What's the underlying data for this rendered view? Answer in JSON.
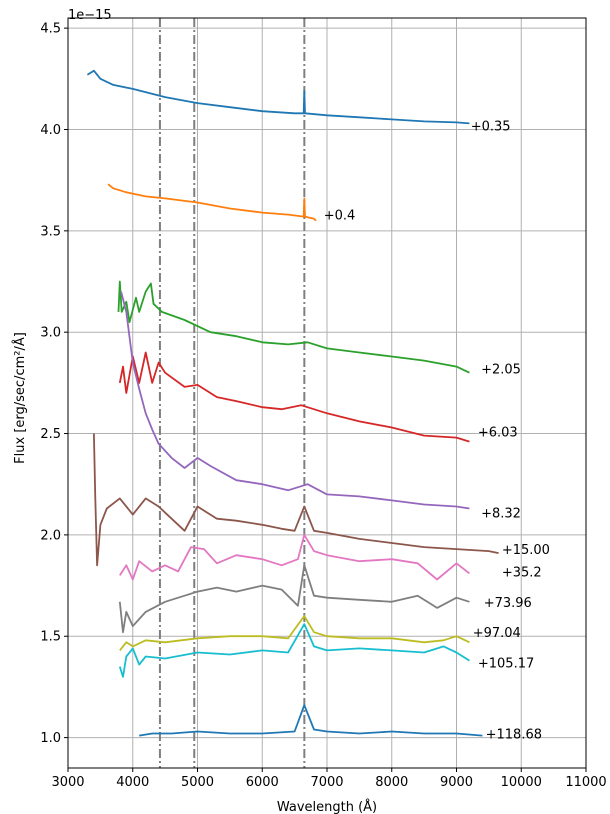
{
  "chart_data": {
    "type": "line",
    "title": "",
    "xlabel": "Wavelength (Å)",
    "ylabel": "Flux [erg/sec/cm²/Å]",
    "y_scale_label": "1e−15",
    "xlim": [
      3000,
      11000
    ],
    "ylim": [
      0.85,
      4.55
    ],
    "x_ticks": [
      3000,
      4000,
      5000,
      6000,
      7000,
      8000,
      9000,
      10000,
      11000
    ],
    "y_ticks": [
      1.0,
      1.5,
      2.0,
      2.5,
      3.0,
      3.5,
      4.0,
      4.5
    ],
    "x_tick_labels": [
      "3000",
      "4000",
      "5000",
      "6000",
      "7000",
      "8000",
      "9000",
      "10000",
      "11000"
    ],
    "y_tick_labels": [
      "1.0",
      "1.5",
      "2.0",
      "2.5",
      "3.0",
      "3.5",
      "4.0",
      "4.5"
    ],
    "grid": true,
    "vlines": [
      4420,
      4950,
      6650
    ],
    "vline_color": "#7f7f7f",
    "series": [
      {
        "name": "+0.35",
        "color": "#1f77b4",
        "points": [
          [
            3300,
            4.27
          ],
          [
            3400,
            4.29
          ],
          [
            3500,
            4.25
          ],
          [
            3700,
            4.22
          ],
          [
            4000,
            4.2
          ],
          [
            4500,
            4.16
          ],
          [
            5000,
            4.13
          ],
          [
            5500,
            4.11
          ],
          [
            6000,
            4.09
          ],
          [
            6500,
            4.08
          ],
          [
            6640,
            4.08
          ],
          [
            6650,
            4.19
          ],
          [
            6660,
            4.08
          ],
          [
            7000,
            4.07
          ],
          [
            7500,
            4.06
          ],
          [
            8000,
            4.05
          ],
          [
            8500,
            4.04
          ],
          [
            9000,
            4.035
          ],
          [
            9200,
            4.03
          ]
        ]
      },
      {
        "name": "+0.4",
        "color": "#ff7f0e",
        "points": [
          [
            3620,
            3.73
          ],
          [
            3700,
            3.71
          ],
          [
            3900,
            3.69
          ],
          [
            4200,
            3.67
          ],
          [
            4500,
            3.66
          ],
          [
            5000,
            3.64
          ],
          [
            5500,
            3.61
          ],
          [
            6000,
            3.59
          ],
          [
            6400,
            3.58
          ],
          [
            6640,
            3.57
          ],
          [
            6650,
            3.66
          ],
          [
            6660,
            3.57
          ],
          [
            6800,
            3.56
          ],
          [
            6830,
            3.55
          ]
        ]
      },
      {
        "name": "+2.05",
        "color": "#2ca02c",
        "points": [
          [
            3780,
            3.1
          ],
          [
            3800,
            3.25
          ],
          [
            3830,
            3.1
          ],
          [
            3900,
            3.15
          ],
          [
            3950,
            3.05
          ],
          [
            4050,
            3.17
          ],
          [
            4100,
            3.1
          ],
          [
            4200,
            3.2
          ],
          [
            4280,
            3.24
          ],
          [
            4320,
            3.14
          ],
          [
            4450,
            3.1
          ],
          [
            4800,
            3.06
          ],
          [
            5200,
            3.0
          ],
          [
            5600,
            2.98
          ],
          [
            6000,
            2.95
          ],
          [
            6400,
            2.94
          ],
          [
            6700,
            2.95
          ],
          [
            7000,
            2.92
          ],
          [
            7500,
            2.9
          ],
          [
            8000,
            2.88
          ],
          [
            8500,
            2.86
          ],
          [
            9000,
            2.83
          ],
          [
            9200,
            2.8
          ]
        ]
      },
      {
        "name": "+6.03",
        "color": "#d62728",
        "points": [
          [
            3800,
            2.75
          ],
          [
            3850,
            2.83
          ],
          [
            3900,
            2.7
          ],
          [
            4000,
            2.88
          ],
          [
            4100,
            2.75
          ],
          [
            4200,
            2.9
          ],
          [
            4300,
            2.75
          ],
          [
            4400,
            2.85
          ],
          [
            4500,
            2.8
          ],
          [
            4800,
            2.73
          ],
          [
            5000,
            2.74
          ],
          [
            5300,
            2.68
          ],
          [
            5600,
            2.66
          ],
          [
            6000,
            2.63
          ],
          [
            6300,
            2.62
          ],
          [
            6600,
            2.64
          ],
          [
            7000,
            2.6
          ],
          [
            7500,
            2.56
          ],
          [
            8000,
            2.53
          ],
          [
            8500,
            2.49
          ],
          [
            9000,
            2.48
          ],
          [
            9200,
            2.46
          ]
        ]
      },
      {
        "name": "+8.32",
        "color": "#9467bd",
        "points": [
          [
            3820,
            3.2
          ],
          [
            3900,
            3.1
          ],
          [
            4000,
            2.85
          ],
          [
            4100,
            2.72
          ],
          [
            4200,
            2.6
          ],
          [
            4300,
            2.52
          ],
          [
            4400,
            2.45
          ],
          [
            4600,
            2.38
          ],
          [
            4800,
            2.33
          ],
          [
            5000,
            2.38
          ],
          [
            5200,
            2.34
          ],
          [
            5600,
            2.27
          ],
          [
            6000,
            2.25
          ],
          [
            6400,
            2.22
          ],
          [
            6700,
            2.25
          ],
          [
            7000,
            2.2
          ],
          [
            7500,
            2.19
          ],
          [
            8000,
            2.17
          ],
          [
            8500,
            2.15
          ],
          [
            9000,
            2.14
          ],
          [
            9200,
            2.13
          ]
        ]
      },
      {
        "name": "+15.00",
        "color": "#8c564b",
        "points": [
          [
            3400,
            2.5
          ],
          [
            3420,
            2.2
          ],
          [
            3450,
            1.85
          ],
          [
            3500,
            2.05
          ],
          [
            3600,
            2.13
          ],
          [
            3800,
            2.18
          ],
          [
            4000,
            2.1
          ],
          [
            4200,
            2.18
          ],
          [
            4400,
            2.14
          ],
          [
            4600,
            2.08
          ],
          [
            4800,
            2.02
          ],
          [
            5000,
            2.14
          ],
          [
            5300,
            2.08
          ],
          [
            5600,
            2.07
          ],
          [
            6000,
            2.05
          ],
          [
            6300,
            2.03
          ],
          [
            6500,
            2.02
          ],
          [
            6650,
            2.14
          ],
          [
            6800,
            2.02
          ],
          [
            7000,
            2.01
          ],
          [
            7500,
            1.98
          ],
          [
            8000,
            1.96
          ],
          [
            8500,
            1.94
          ],
          [
            9000,
            1.93
          ],
          [
            9500,
            1.92
          ],
          [
            9650,
            1.91
          ]
        ]
      },
      {
        "name": "+35.2",
        "color": "#e377c2",
        "points": [
          [
            3800,
            1.8
          ],
          [
            3900,
            1.85
          ],
          [
            4000,
            1.78
          ],
          [
            4100,
            1.87
          ],
          [
            4300,
            1.82
          ],
          [
            4500,
            1.85
          ],
          [
            4700,
            1.82
          ],
          [
            4900,
            1.94
          ],
          [
            5100,
            1.93
          ],
          [
            5300,
            1.86
          ],
          [
            5600,
            1.9
          ],
          [
            6000,
            1.88
          ],
          [
            6300,
            1.85
          ],
          [
            6550,
            1.88
          ],
          [
            6650,
            2.0
          ],
          [
            6800,
            1.92
          ],
          [
            7000,
            1.9
          ],
          [
            7500,
            1.87
          ],
          [
            8000,
            1.88
          ],
          [
            8400,
            1.86
          ],
          [
            8700,
            1.78
          ],
          [
            9000,
            1.86
          ],
          [
            9200,
            1.81
          ]
        ]
      },
      {
        "name": "+73.96",
        "color": "#7f7f7f",
        "points": [
          [
            3800,
            1.67
          ],
          [
            3850,
            1.52
          ],
          [
            3900,
            1.62
          ],
          [
            4000,
            1.55
          ],
          [
            4200,
            1.62
          ],
          [
            4500,
            1.67
          ],
          [
            4800,
            1.7
          ],
          [
            5000,
            1.72
          ],
          [
            5300,
            1.74
          ],
          [
            5600,
            1.72
          ],
          [
            6000,
            1.75
          ],
          [
            6300,
            1.73
          ],
          [
            6550,
            1.65
          ],
          [
            6650,
            1.85
          ],
          [
            6800,
            1.7
          ],
          [
            7000,
            1.69
          ],
          [
            7500,
            1.68
          ],
          [
            8000,
            1.67
          ],
          [
            8400,
            1.7
          ],
          [
            8700,
            1.64
          ],
          [
            9000,
            1.69
          ],
          [
            9200,
            1.67
          ]
        ]
      },
      {
        "name": "+97.04",
        "color": "#bcbd22",
        "points": [
          [
            3800,
            1.43
          ],
          [
            3900,
            1.47
          ],
          [
            4000,
            1.45
          ],
          [
            4200,
            1.48
          ],
          [
            4500,
            1.47
          ],
          [
            5000,
            1.49
          ],
          [
            5500,
            1.5
          ],
          [
            6000,
            1.5
          ],
          [
            6400,
            1.49
          ],
          [
            6650,
            1.6
          ],
          [
            6800,
            1.52
          ],
          [
            7000,
            1.5
          ],
          [
            7500,
            1.49
          ],
          [
            8000,
            1.49
          ],
          [
            8500,
            1.47
          ],
          [
            8800,
            1.48
          ],
          [
            9000,
            1.5
          ],
          [
            9200,
            1.47
          ]
        ]
      },
      {
        "name": "+105.17",
        "color": "#17becf",
        "points": [
          [
            3800,
            1.35
          ],
          [
            3850,
            1.3
          ],
          [
            3900,
            1.4
          ],
          [
            4000,
            1.44
          ],
          [
            4100,
            1.36
          ],
          [
            4200,
            1.4
          ],
          [
            4500,
            1.39
          ],
          [
            5000,
            1.42
          ],
          [
            5500,
            1.41
          ],
          [
            6000,
            1.43
          ],
          [
            6400,
            1.42
          ],
          [
            6650,
            1.56
          ],
          [
            6800,
            1.45
          ],
          [
            7000,
            1.43
          ],
          [
            7500,
            1.44
          ],
          [
            8000,
            1.43
          ],
          [
            8500,
            1.42
          ],
          [
            8800,
            1.45
          ],
          [
            9000,
            1.42
          ],
          [
            9200,
            1.38
          ]
        ]
      },
      {
        "name": "+118.68",
        "color": "#1f77b4",
        "points": [
          [
            4100,
            1.01
          ],
          [
            4300,
            1.02
          ],
          [
            4600,
            1.02
          ],
          [
            5000,
            1.03
          ],
          [
            5500,
            1.02
          ],
          [
            6000,
            1.02
          ],
          [
            6500,
            1.03
          ],
          [
            6650,
            1.16
          ],
          [
            6800,
            1.04
          ],
          [
            7000,
            1.03
          ],
          [
            7500,
            1.02
          ],
          [
            8000,
            1.03
          ],
          [
            8500,
            1.02
          ],
          [
            9000,
            1.02
          ],
          [
            9400,
            1.01
          ]
        ]
      }
    ],
    "labels": [
      {
        "text": "+0.35",
        "x": 9220,
        "y": 4.02,
        "color": "#000000"
      },
      {
        "text": "+0.4",
        "x": 6950,
        "y": 3.58,
        "color": "#000000"
      },
      {
        "text": "+2.05",
        "x": 9380,
        "y": 2.82,
        "color": "#000000"
      },
      {
        "text": "+6.03",
        "x": 9330,
        "y": 2.51,
        "color": "#000000"
      },
      {
        "text": "+8.32",
        "x": 9380,
        "y": 2.11,
        "color": "#000000"
      },
      {
        "text": "+15.00",
        "x": 9700,
        "y": 1.93,
        "color": "#000000"
      },
      {
        "text": "+35.2",
        "x": 9700,
        "y": 1.82,
        "color": "#000000"
      },
      {
        "text": "+73.96",
        "x": 9420,
        "y": 1.67,
        "color": "#000000"
      },
      {
        "text": "+97.04",
        "x": 9250,
        "y": 1.52,
        "color": "#000000"
      },
      {
        "text": "+105.17",
        "x": 9330,
        "y": 1.37,
        "color": "#000000"
      },
      {
        "text": "+118.68",
        "x": 9450,
        "y": 1.02,
        "color": "#000000"
      }
    ]
  }
}
